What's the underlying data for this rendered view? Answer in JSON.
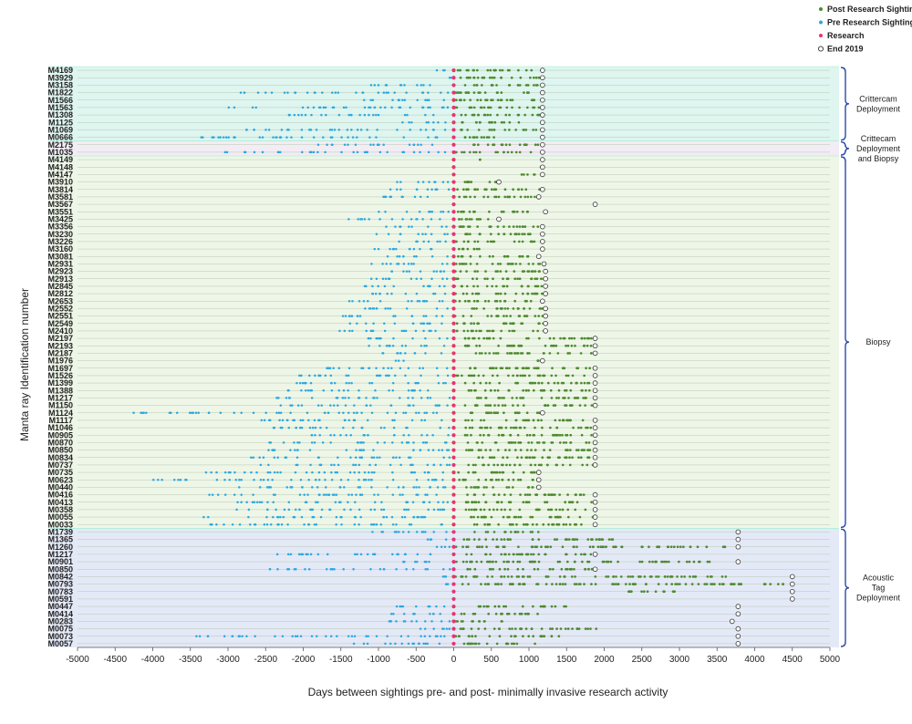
{
  "chart_data": {
    "type": "scatter",
    "xlabel": "Days between sightings pre- and post- minimally invasive research activity",
    "ylabel": "Manta ray Identification number",
    "xlim": [
      -5000,
      5000
    ],
    "xticks": [
      -5000,
      -4500,
      -4000,
      -3500,
      -3000,
      -2500,
      -2000,
      -1500,
      -1000,
      -500,
      0,
      500,
      1000,
      1500,
      2000,
      2500,
      3000,
      3500,
      4000,
      4500,
      5000
    ],
    "legend": {
      "placement": "top-right",
      "items": [
        {
          "label": "Post Research Sighting",
          "color": "#4e8a2e",
          "marker": "dot"
        },
        {
          "label": "Pre Research Sighting",
          "color": "#2aa8e0",
          "marker": "dot"
        },
        {
          "label": "Research",
          "color": "#e8336f",
          "marker": "dot"
        },
        {
          "label": "End 2019",
          "color": "#333333",
          "marker": "ring"
        }
      ]
    },
    "groups": [
      {
        "label": "Crittercam\nDeployment",
        "color": "#dff5ef",
        "ids": [
          "M4169",
          "M3929",
          "M3158",
          "M1822",
          "M1566",
          "M1563",
          "M1308",
          "M1125",
          "M1069",
          "M0666"
        ]
      },
      {
        "label": "Crittecam\nDeployment\nand Biopsy",
        "color": "#f2ecf5",
        "ids": [
          "M2175",
          "M1035"
        ]
      },
      {
        "label": "Biopsy",
        "color": "#eef6e8",
        "ids": [
          "M4149",
          "M4148",
          "M4147",
          "M3910",
          "M3814",
          "M3581",
          "M3567",
          "M3551",
          "M3425",
          "M3356",
          "M3230",
          "M3226",
          "M3160",
          "M3081",
          "M2931",
          "M2923",
          "M2913",
          "M2845",
          "M2812",
          "M2653",
          "M2552",
          "M2551",
          "M2549",
          "M2410",
          "M2197",
          "M2193",
          "M2187",
          "M1976",
          "M1697",
          "M1526",
          "M1399",
          "M1388",
          "M1217",
          "M1150",
          "M1124",
          "M1117",
          "M1046",
          "M0905",
          "M0870",
          "M0850",
          "M0834",
          "M0737",
          "M0735",
          "M0623",
          "M0440",
          "M0416",
          "M0413",
          "M0358",
          "M0055",
          "M0033"
        ]
      },
      {
        "label": "Acoustic\nTag\nDeployment",
        "color": "#e4e9f7",
        "ids": [
          "M1739",
          "M1365",
          "M1260",
          "M1217",
          "M0901",
          "M0850",
          "M0842",
          "M0793",
          "M0783",
          "M0591",
          "M0447",
          "M0414",
          "M0283",
          "M0075",
          "M0073",
          "M0057"
        ]
      }
    ],
    "end_2019_days": {
      "M4169": 1180,
      "M3929": 1180,
      "M3158": 1180,
      "M1822": 1180,
      "M1566": 1180,
      "M1563": 1180,
      "M1308": 1180,
      "M1125": 1180,
      "M1069": 1180,
      "M0666": 1180,
      "M2175": 1180,
      "M1035": 1180,
      "M4149": 1180,
      "M4148": 1180,
      "M4147": 1180,
      "M3910": 600,
      "M3814": 1180,
      "M3581": 1130,
      "M3567": 1880,
      "M3551": 1220,
      "M3425": 600,
      "M3356": 1180,
      "M3230": 1180,
      "M3226": 1180,
      "M3160": 1180,
      "M3081": 1130,
      "M2931": 1200,
      "M2923": 1220,
      "M2913": 1220,
      "M2845": 1220,
      "M2812": 1220,
      "M2653": 1180,
      "M2552": 1220,
      "M2551": 1220,
      "M2549": 1220,
      "M2410": 1220,
      "M2197": 1880,
      "M2193": 1880,
      "M2187": 1880,
      "M1976": 1180,
      "M1697": 1880,
      "M1526": 1880,
      "M1399": 1880,
      "M1388": 1880,
      "M1217": 1880,
      "M1150": 1880,
      "M1124": 1180,
      "M1117": 1880,
      "M1046": 1880,
      "M0905": 1880,
      "M0870": 1880,
      "M0850": 1880,
      "M0834": 1880,
      "M0737": 1880,
      "M0735": 1130,
      "M0623": 1130,
      "M0440": 1130,
      "M0416": 1880,
      "M0413": 1880,
      "M0358": 1880,
      "M0055": 1880,
      "M0033": 1880,
      "M1739": 3780,
      "M1365": 3780,
      "M1260": 3780,
      "M1217b": 3780,
      "M0901": 3780,
      "M0850b": 4500,
      "M0842": 4500,
      "M0793": 4500,
      "M0783": 4500,
      "M0591": 4500,
      "M0447": 3780,
      "M0414": 3780,
      "M0283": 3700,
      "M0075": 3780,
      "M0073": 3780,
      "M0057": 3780
    },
    "sighting_ranges": [
      {
        "id": "M4169",
        "pre": [
          -250,
          -20
        ],
        "post": [
          0,
          1100
        ]
      },
      {
        "id": "M3929",
        "pre": [
          -60,
          -10
        ],
        "post": [
          0,
          1150
        ]
      },
      {
        "id": "M3158",
        "pre": [
          -1150,
          -50
        ],
        "post": [
          0,
          1150
        ]
      },
      {
        "id": "M1822",
        "pre": [
          -2850,
          -50
        ],
        "post": [
          0,
          1180
        ]
      },
      {
        "id": "M1566",
        "pre": [
          -1200,
          -50
        ],
        "post": [
          0,
          1180
        ]
      },
      {
        "id": "M1563",
        "pre": [
          -3150,
          -50
        ],
        "post": [
          0,
          1180
        ]
      },
      {
        "id": "M1308",
        "pre": [
          -2250,
          -50
        ],
        "post": [
          0,
          1180
        ]
      },
      {
        "id": "M1125",
        "pre": [
          -800,
          -50
        ],
        "post": [
          0,
          900
        ]
      },
      {
        "id": "M1069",
        "pre": [
          -2900,
          -50
        ],
        "post": [
          0,
          1100
        ]
      },
      {
        "id": "M0666",
        "pre": [
          -3400,
          -50
        ],
        "post": [
          0,
          600
        ]
      },
      {
        "id": "M2175",
        "pre": [
          -1800,
          -50
        ],
        "post": [
          250,
          1150
        ]
      },
      {
        "id": "M1035",
        "pre": [
          -3050,
          -50
        ],
        "post": [
          0,
          1180
        ]
      },
      {
        "id": "M4149",
        "pre": [],
        "post": [
          350,
          350
        ]
      },
      {
        "id": "M4148",
        "pre": [],
        "post": [
          1150,
          1180
        ]
      },
      {
        "id": "M4147",
        "pre": [],
        "post": [
          900,
          1150
        ]
      },
      {
        "id": "M3910",
        "pre": [
          -900,
          -50
        ],
        "post": [
          0,
          600
        ]
      },
      {
        "id": "M3814",
        "pre": [
          -1050,
          -50
        ],
        "post": [
          0,
          1150
        ]
      },
      {
        "id": "M3581",
        "pre": [
          -1000,
          -50
        ],
        "post": [
          0,
          1130
        ]
      },
      {
        "id": "M3567",
        "pre": [],
        "post": []
      },
      {
        "id": "M3551",
        "pre": [
          -1000,
          -50
        ],
        "post": [
          0,
          1000
        ]
      },
      {
        "id": "M3425",
        "pre": [
          -1400,
          -50
        ],
        "post": [
          0,
          600
        ]
      },
      {
        "id": "M3356",
        "pre": [
          -900,
          -50
        ],
        "post": [
          0,
          1150
        ]
      },
      {
        "id": "M3230",
        "pre": [
          -1050,
          -50
        ],
        "post": [
          0,
          1180
        ]
      },
      {
        "id": "M3226",
        "pre": [
          -800,
          -50
        ],
        "post": [
          0,
          1100
        ]
      },
      {
        "id": "M3160",
        "pre": [
          -1100,
          -50
        ],
        "post": [
          0,
          500
        ]
      },
      {
        "id": "M3081",
        "pre": [
          -900,
          -50
        ],
        "post": [
          0,
          1000
        ]
      },
      {
        "id": "M2931",
        "pre": [
          -1100,
          -50
        ],
        "post": [
          0,
          1200
        ]
      },
      {
        "id": "M2923",
        "pre": [
          -1050,
          -50
        ],
        "post": [
          0,
          1220
        ]
      },
      {
        "id": "M2913",
        "pre": [
          -1100,
          -50
        ],
        "post": [
          0,
          1220
        ]
      },
      {
        "id": "M2845",
        "pre": [
          -1200,
          -50
        ],
        "post": [
          0,
          1220
        ]
      },
      {
        "id": "M2812",
        "pre": [
          -1150,
          -50
        ],
        "post": [
          0,
          1220
        ]
      },
      {
        "id": "M2653",
        "pre": [
          -1550,
          -50
        ],
        "post": [
          0,
          1150
        ]
      },
      {
        "id": "M2552",
        "pre": [
          -1250,
          -50
        ],
        "post": [
          0,
          1220
        ]
      },
      {
        "id": "M2551",
        "pre": [
          -1550,
          -50
        ],
        "post": [
          0,
          1220
        ]
      },
      {
        "id": "M2549",
        "pre": [
          -1400,
          -50
        ],
        "post": [
          0,
          1220
        ]
      },
      {
        "id": "M2410",
        "pre": [
          -1550,
          -50
        ],
        "post": [
          0,
          1220
        ]
      },
      {
        "id": "M2197",
        "pre": [
          -1200,
          -50
        ],
        "post": [
          150,
          1850
        ]
      },
      {
        "id": "M2193",
        "pre": [
          -1200,
          -50
        ],
        "post": [
          150,
          1850
        ]
      },
      {
        "id": "M2187",
        "pre": [
          -1000,
          -50
        ],
        "post": [
          150,
          1850
        ]
      },
      {
        "id": "M1976",
        "pre": [
          -800,
          -600
        ],
        "post": [
          1100,
          1150
        ]
      },
      {
        "id": "M1697",
        "pre": [
          -1900,
          -50
        ],
        "post": [
          0,
          1880
        ]
      },
      {
        "id": "M1526",
        "pre": [
          -2100,
          -50
        ],
        "post": [
          0,
          1880
        ]
      },
      {
        "id": "M1399",
        "pre": [
          -2100,
          -50
        ],
        "post": [
          150,
          1850
        ]
      },
      {
        "id": "M1388",
        "pre": [
          -2300,
          -50
        ],
        "post": [
          150,
          1850
        ]
      },
      {
        "id": "M1217",
        "pre": [
          -2400,
          -50
        ],
        "post": [
          150,
          1850
        ]
      },
      {
        "id": "M1150",
        "pre": [
          -2300,
          -50
        ],
        "post": [
          150,
          1850
        ]
      },
      {
        "id": "M1124",
        "pre": [
          -4300,
          -50
        ],
        "post": [
          150,
          1150
        ]
      },
      {
        "id": "M1117",
        "pre": [
          -2600,
          -50
        ],
        "post": [
          150,
          1850
        ]
      },
      {
        "id": "M1046",
        "pre": [
          -2400,
          -50
        ],
        "post": [
          150,
          1850
        ]
      },
      {
        "id": "M0905",
        "pre": [
          -1900,
          -50
        ],
        "post": [
          150,
          1850
        ]
      },
      {
        "id": "M0870",
        "pre": [
          -2600,
          -50
        ],
        "post": [
          150,
          1850
        ]
      },
      {
        "id": "M0850",
        "pre": [
          -2500,
          -50
        ],
        "post": [
          150,
          1850
        ]
      },
      {
        "id": "M0834",
        "pre": [
          -2700,
          -50
        ],
        "post": [
          150,
          1850
        ]
      },
      {
        "id": "M0737",
        "pre": [
          -2600,
          -50
        ],
        "post": [
          150,
          1850
        ]
      },
      {
        "id": "M0735",
        "pre": [
          -3450,
          -50
        ],
        "post": [
          0,
          1100
        ]
      },
      {
        "id": "M0623",
        "pre": [
          -4000,
          -50
        ],
        "post": [
          0,
          1100
        ]
      },
      {
        "id": "M0440",
        "pre": [
          -3000,
          -50
        ],
        "post": [
          150,
          1100
        ]
      },
      {
        "id": "M0416",
        "pre": [
          -3400,
          -50
        ],
        "post": [
          150,
          1850
        ]
      },
      {
        "id": "M0413",
        "pre": [
          -3100,
          -50
        ],
        "post": [
          150,
          1850
        ]
      },
      {
        "id": "M0358",
        "pre": [
          -2900,
          -50
        ],
        "post": [
          150,
          1850
        ]
      },
      {
        "id": "M0055",
        "pre": [
          -3350,
          -50
        ],
        "post": [
          150,
          1850
        ]
      },
      {
        "id": "M0033",
        "pre": [
          -3350,
          -50
        ],
        "post": [
          150,
          1850
        ]
      },
      {
        "id": "M1739",
        "pre": [
          -1300,
          -50
        ],
        "post": [
          250,
          1150
        ]
      },
      {
        "id": "M1365",
        "pre": [
          -400,
          -50
        ],
        "post": [
          0,
          2150
        ]
      },
      {
        "id": "M1260",
        "pre": [
          -400,
          -50
        ],
        "post": [
          0,
          3700
        ]
      },
      {
        "id": "M1217b",
        "pre": [
          -300,
          -50
        ],
        "post": [
          0,
          3650
        ]
      },
      {
        "id": "M0901",
        "pre": [
          -700,
          -50
        ],
        "post": [
          0,
          3450
        ]
      },
      {
        "id": "M0850b",
        "pre": [
          -400,
          -50
        ],
        "post": [
          0,
          4400
        ]
      },
      {
        "id": "M0842",
        "pre": [
          -150,
          -50
        ],
        "post": [
          0,
          3800
        ]
      },
      {
        "id": "M0793",
        "pre": [
          -150,
          -50
        ],
        "post": [
          0,
          4450
        ]
      },
      {
        "id": "M0783",
        "pre": [],
        "post": [
          2300,
          2950
        ]
      },
      {
        "id": "M0591",
        "pre": [],
        "post": []
      },
      {
        "id": "M0447",
        "pre": [
          -850,
          -50
        ],
        "post": [
          300,
          1500
        ]
      },
      {
        "id": "M0414",
        "pre": [
          -850,
          -50
        ],
        "post": [
          0,
          1150
        ]
      },
      {
        "id": "M0283",
        "pre": [
          -1100,
          -50
        ],
        "post": [
          0,
          700
        ]
      },
      {
        "id": "M0075",
        "pre": [
          -800,
          -50
        ],
        "post": [
          0,
          1900
        ]
      },
      {
        "id": "M0073",
        "pre": [
          -3550,
          -50
        ],
        "post": [
          0,
          1400
        ]
      },
      {
        "id": "M0057",
        "pre": [
          -1450,
          -50
        ],
        "post": [
          0,
          1200
        ]
      }
    ]
  },
  "colors": {
    "post": "#4e8a2e",
    "pre": "#2aa8e0",
    "research": "#e8336f",
    "ring": "#333333",
    "bracket": "#2b4aa8",
    "row_line": "#b8c8b0"
  }
}
